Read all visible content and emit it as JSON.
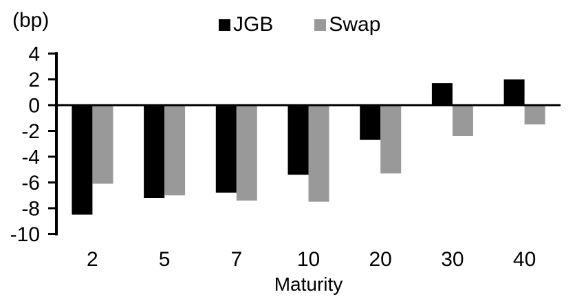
{
  "chart_data": {
    "type": "bar",
    "title": "",
    "xlabel": "Maturity",
    "ylabel": "(bp)",
    "categories": [
      "2",
      "5",
      "7",
      "10",
      "20",
      "30",
      "40"
    ],
    "series": [
      {
        "name": "JGB",
        "color": "#000000",
        "values": [
          -8.5,
          -7.2,
          -6.8,
          -5.4,
          -2.7,
          1.7,
          2.0
        ]
      },
      {
        "name": "Swap",
        "color": "#999999",
        "values": [
          -6.1,
          -7.0,
          -7.4,
          -7.5,
          -5.3,
          -2.4,
          -1.5
        ]
      }
    ],
    "ylim": [
      -10,
      4
    ],
    "yticks": [
      4,
      2,
      0,
      -2,
      -4,
      -6,
      -8,
      -10
    ],
    "grid": false,
    "legend_position": "top-center",
    "axis_color": "#000000",
    "background": "#ffffff"
  }
}
